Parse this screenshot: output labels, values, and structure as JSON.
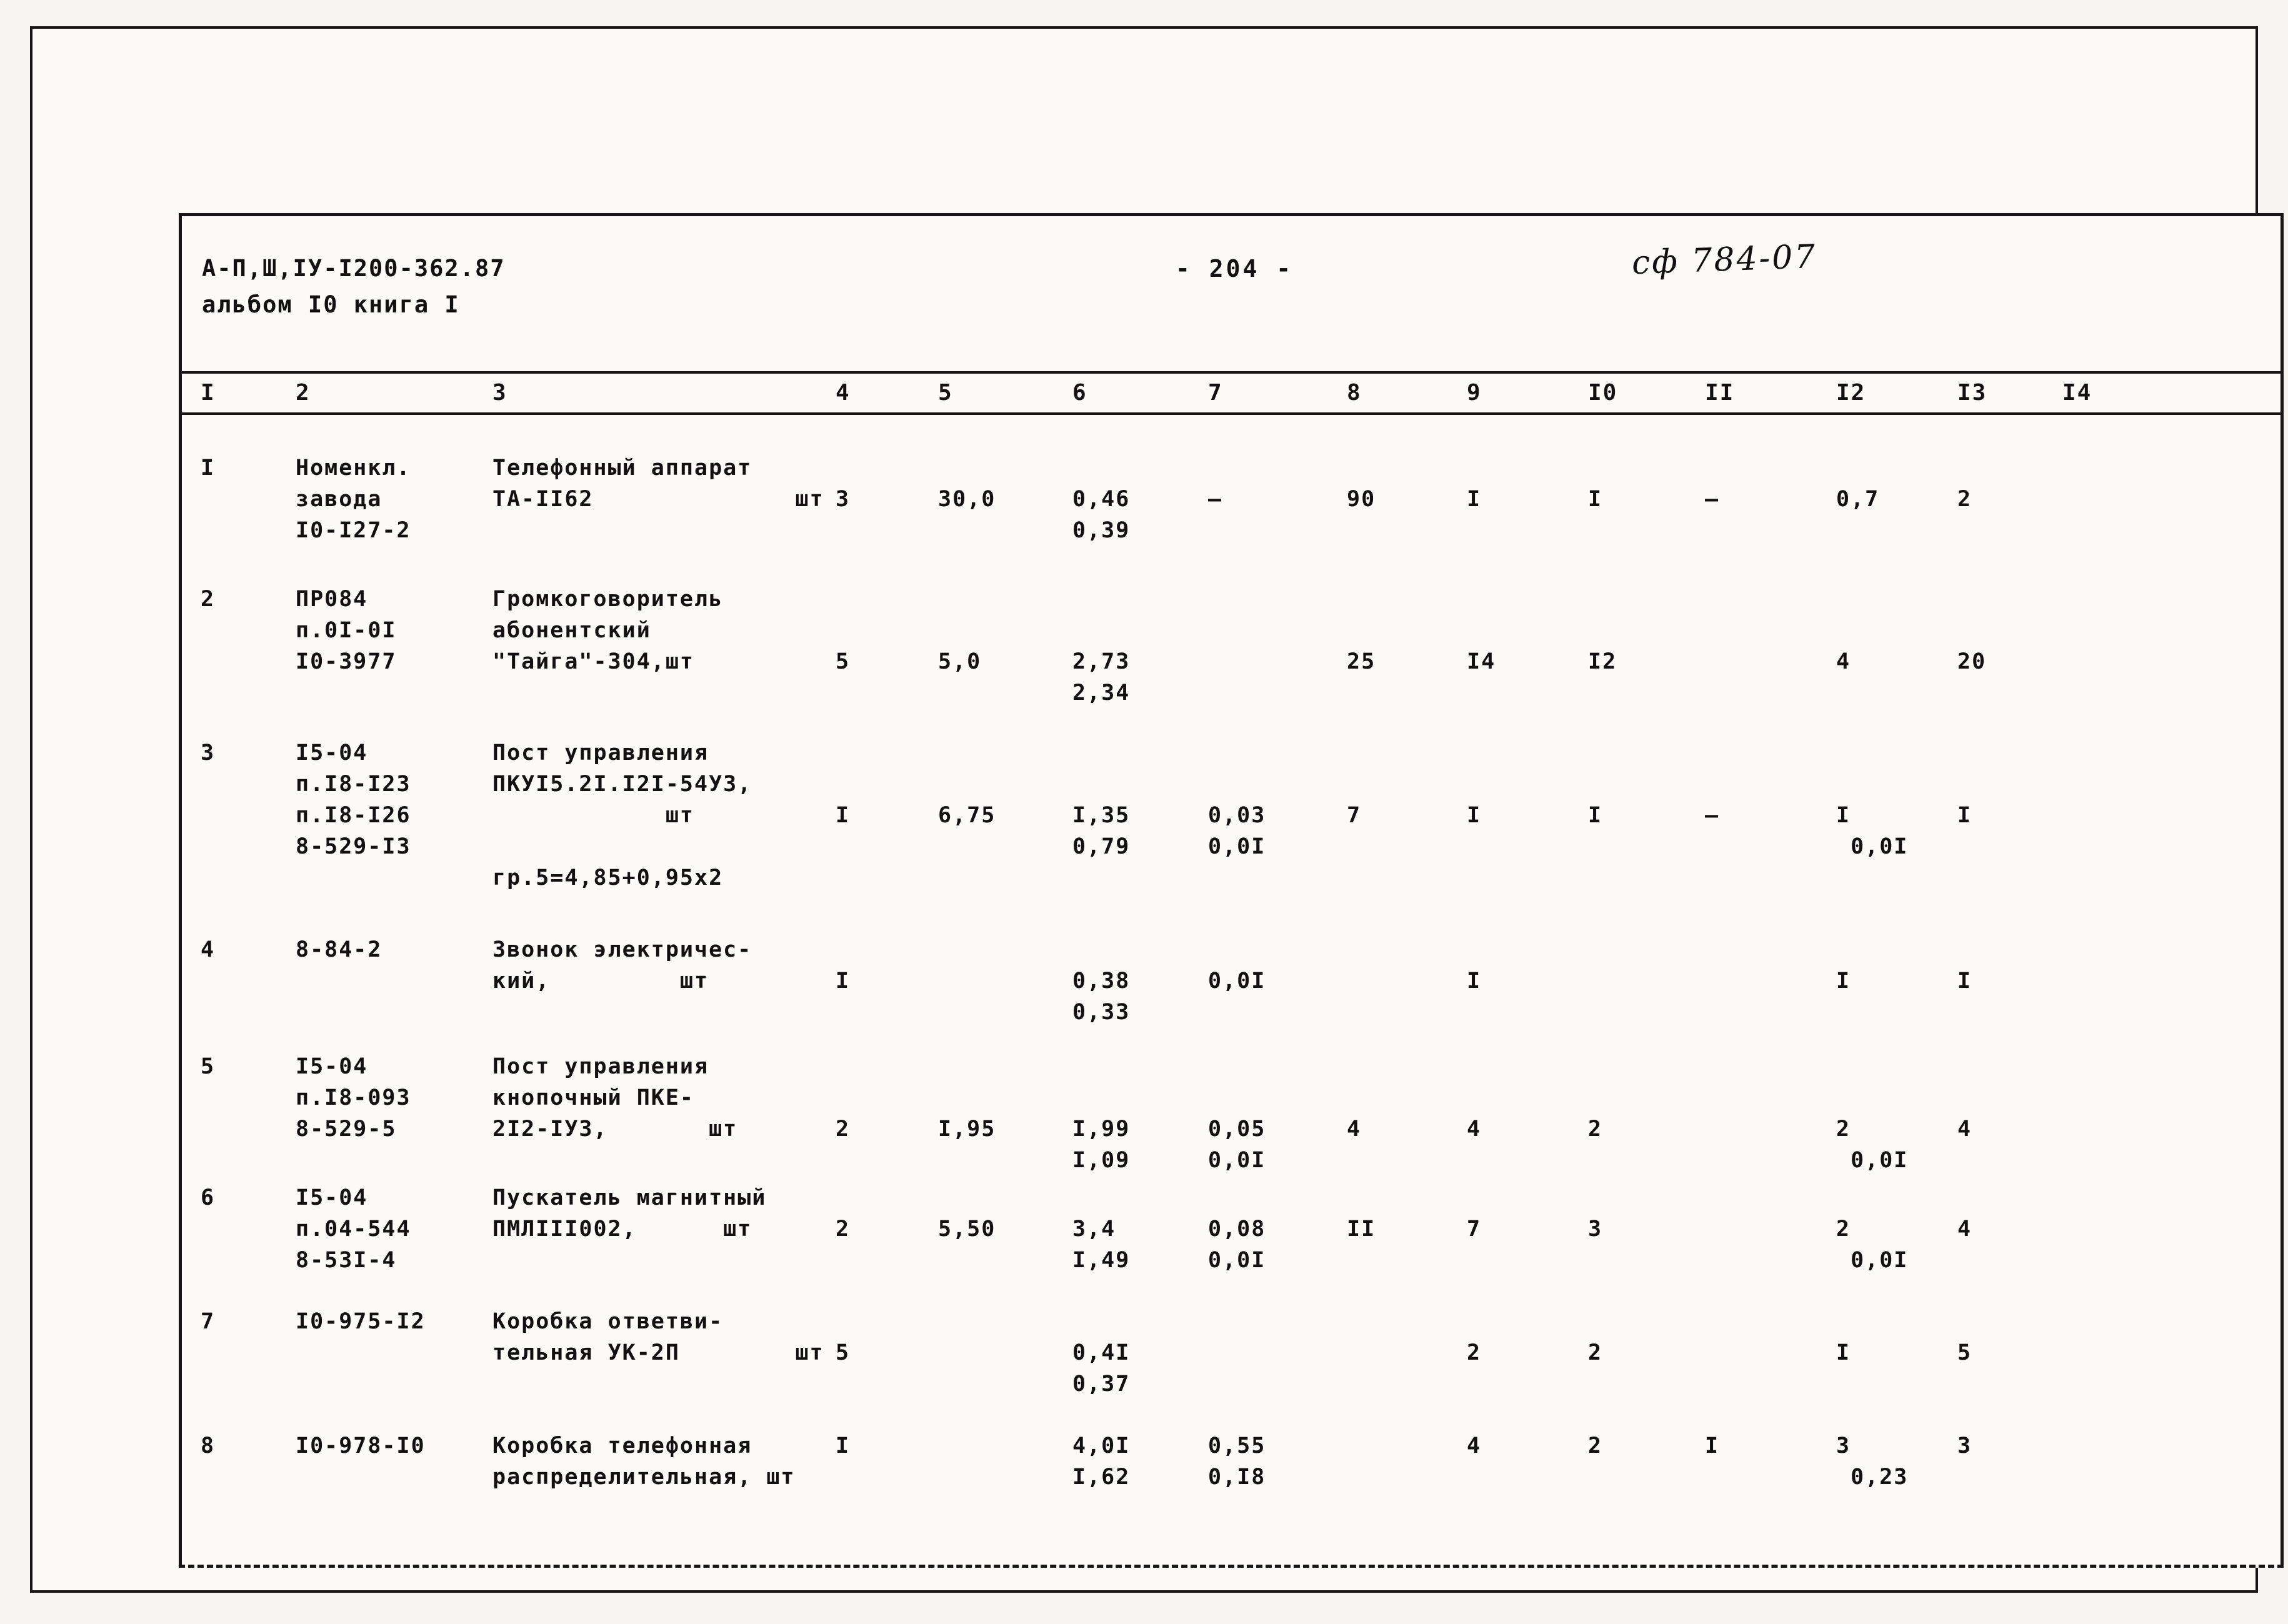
{
  "doc": {
    "code": "А-П,Ш,IУ-I200-362.87",
    "album": "альбом I0 книга I",
    "page_number": "- 204 -",
    "stamp": "сф 784-07"
  },
  "table": {
    "columns": [
      "I",
      "2",
      "3",
      "4",
      "5",
      "6",
      "7",
      "8",
      "9",
      "I0",
      "II",
      "I2",
      "I3",
      "I4"
    ],
    "rows": [
      {
        "value_offset": 1,
        "cells": [
          [
            "I"
          ],
          [
            "Номенкл.",
            "завода",
            "I0-I27-2"
          ],
          [
            "Телефонный аппарат",
            "ТА-II62              шт"
          ],
          [
            "3"
          ],
          [
            "30,0"
          ],
          [
            "0,46",
            "0,39"
          ],
          [
            "–"
          ],
          [
            "90"
          ],
          [
            "I"
          ],
          [
            "I"
          ],
          [
            "–"
          ],
          [
            "0,7"
          ],
          [
            "2"
          ],
          []
        ]
      },
      {
        "value_offset": 2,
        "cells": [
          [
            "2"
          ],
          [
            "ПР084",
            "п.0I-0I",
            "I0-3977"
          ],
          [
            "Громкоговоритель",
            "абонентский",
            "\"Тайга\"-304,шт"
          ],
          [
            "5"
          ],
          [
            "5,0"
          ],
          [
            "2,73",
            "2,34"
          ],
          [],
          [
            "25"
          ],
          [
            "I4"
          ],
          [
            "I2"
          ],
          [],
          [
            "4"
          ],
          [
            "20"
          ],
          []
        ]
      },
      {
        "value_offset": 2,
        "cells": [
          [
            "3"
          ],
          [
            "I5-04",
            "п.I8-I23",
            "п.I8-I26",
            "8-529-I3"
          ],
          [
            "Пост управления",
            "ПКУI5.2I.I2I-54У3,",
            "            шт",
            "",
            "гр.5=4,85+0,95х2"
          ],
          [
            "I"
          ],
          [
            "6,75"
          ],
          [
            "I,35",
            "0,79"
          ],
          [
            "0,03",
            "0,0I"
          ],
          [
            "7"
          ],
          [
            "I"
          ],
          [
            "I"
          ],
          [
            "–"
          ],
          [
            "I",
            " 0,0I"
          ],
          [
            "I"
          ],
          []
        ]
      },
      {
        "value_offset": 1,
        "cells": [
          [
            "4"
          ],
          [
            "8-84-2"
          ],
          [
            "Звонок электричес-",
            "кий,         шт"
          ],
          [
            "I"
          ],
          [],
          [
            "0,38",
            "0,33"
          ],
          [
            "0,0I"
          ],
          [],
          [
            "I"
          ],
          [],
          [],
          [
            "I"
          ],
          [
            "I"
          ],
          []
        ]
      },
      {
        "value_offset": 2,
        "cells": [
          [
            "5"
          ],
          [
            "I5-04",
            "п.I8-093",
            "8-529-5"
          ],
          [
            "Пост управления",
            "кнопочный ПКЕ-",
            "2I2-IУ3,       шт"
          ],
          [
            "2"
          ],
          [
            "I,95"
          ],
          [
            "I,99",
            "I,09"
          ],
          [
            "0,05",
            "0,0I"
          ],
          [
            "4"
          ],
          [
            "4"
          ],
          [
            "2"
          ],
          [],
          [
            "2",
            " 0,0I"
          ],
          [
            "4"
          ],
          []
        ]
      },
      {
        "value_offset": 1,
        "cells": [
          [
            "6"
          ],
          [
            "I5-04",
            "п.04-544",
            "8-53I-4"
          ],
          [
            "Пускатель магнитный",
            "ПМЛIII002,      шт"
          ],
          [
            "2"
          ],
          [
            "5,50"
          ],
          [
            "3,4",
            "I,49"
          ],
          [
            "0,08",
            "0,0I"
          ],
          [
            "II"
          ],
          [
            "7"
          ],
          [
            "3"
          ],
          [],
          [
            "2",
            " 0,0I"
          ],
          [
            "4"
          ],
          []
        ]
      },
      {
        "value_offset": 1,
        "cells": [
          [
            "7"
          ],
          [
            "I0-975-I2"
          ],
          [
            "Коробка ответви-",
            "тельная УК-2П        шт"
          ],
          [
            "5"
          ],
          [],
          [
            "0,4I",
            "0,37"
          ],
          [],
          [],
          [
            "2"
          ],
          [
            "2"
          ],
          [],
          [
            "I"
          ],
          [
            "5"
          ],
          []
        ]
      },
      {
        "value_offset": 0,
        "cells": [
          [
            "8"
          ],
          [
            "I0-978-I0"
          ],
          [
            "Коробка телефонная",
            "распределительная, шт"
          ],
          [
            "I"
          ],
          [],
          [
            "4,0I",
            "I,62"
          ],
          [
            "0,55",
            "0,I8"
          ],
          [],
          [
            "4"
          ],
          [
            "2"
          ],
          [
            "I"
          ],
          [
            "3",
            " 0,23"
          ],
          [
            "3"
          ],
          []
        ]
      }
    ]
  }
}
